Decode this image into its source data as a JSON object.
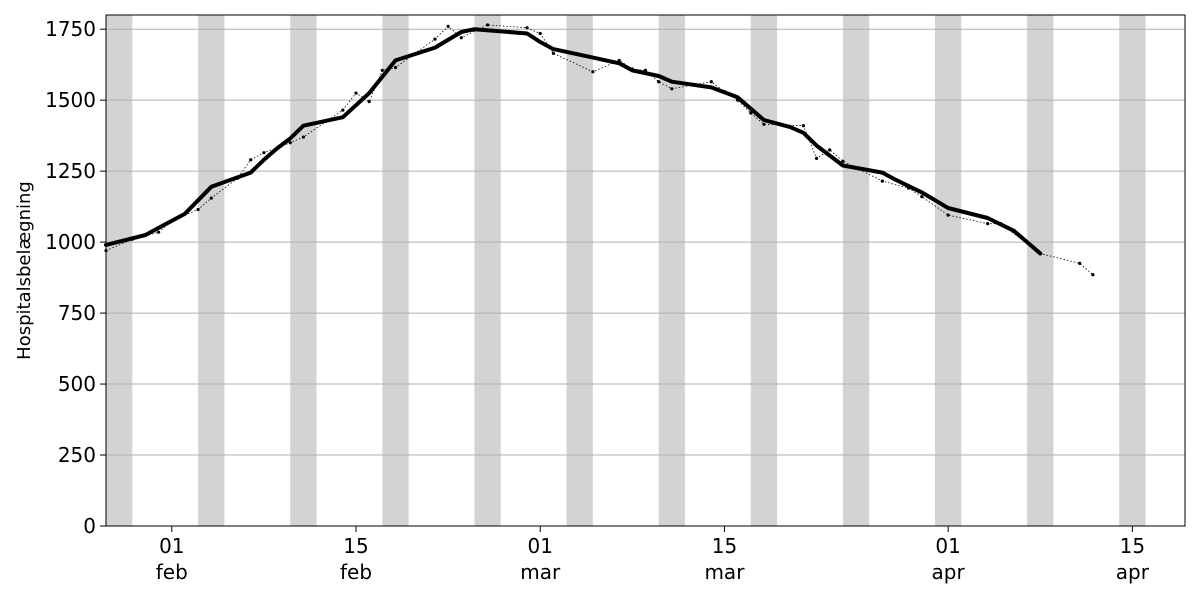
{
  "chart_data": {
    "type": "line",
    "ylabel": "Hospitalsbelægning",
    "xlabel": "",
    "title": "",
    "ylim": [
      0,
      1800
    ],
    "y_ticks": [
      0,
      250,
      500,
      750,
      1000,
      1250,
      1500,
      1750
    ],
    "xlim": [
      "2021-01-27",
      "2021-04-19"
    ],
    "x_ticks": [
      {
        "date": "2021-02-01",
        "day": "01",
        "month": "feb"
      },
      {
        "date": "2021-02-15",
        "day": "15",
        "month": "feb"
      },
      {
        "date": "2021-03-01",
        "day": "01",
        "month": "mar"
      },
      {
        "date": "2021-03-15",
        "day": "15",
        "month": "mar"
      },
      {
        "date": "2021-04-01",
        "day": "01",
        "month": "apr"
      },
      {
        "date": "2021-04-15",
        "day": "15",
        "month": "apr"
      }
    ],
    "grid": "horizontal",
    "weekend_bands": [
      [
        "2021-01-27",
        "2021-01-29"
      ],
      [
        "2021-02-03",
        "2021-02-05"
      ],
      [
        "2021-02-10",
        "2021-02-12"
      ],
      [
        "2021-02-17",
        "2021-02-19"
      ],
      [
        "2021-02-24",
        "2021-02-26"
      ],
      [
        "2021-03-03",
        "2021-03-05"
      ],
      [
        "2021-03-10",
        "2021-03-12"
      ],
      [
        "2021-03-17",
        "2021-03-19"
      ],
      [
        "2021-03-24",
        "2021-03-26"
      ],
      [
        "2021-03-31",
        "2021-04-02"
      ],
      [
        "2021-04-07",
        "2021-04-09"
      ],
      [
        "2021-04-14",
        "2021-04-16"
      ]
    ],
    "series": [
      {
        "style": "dotted-with-markers",
        "color": "#000000",
        "points": [
          [
            "2021-01-27",
            970
          ],
          [
            "2021-01-29",
            1010
          ],
          [
            "2021-01-31",
            1035
          ],
          [
            "2021-02-01",
            1075
          ],
          [
            "2021-02-03",
            1115
          ],
          [
            "2021-02-04",
            1155
          ],
          [
            "2021-02-06",
            1225
          ],
          [
            "2021-02-07",
            1290
          ],
          [
            "2021-02-08",
            1315
          ],
          [
            "2021-02-10",
            1350
          ],
          [
            "2021-02-11",
            1370
          ],
          [
            "2021-02-14",
            1465
          ],
          [
            "2021-02-15",
            1525
          ],
          [
            "2021-02-16",
            1495
          ],
          [
            "2021-02-17",
            1605
          ],
          [
            "2021-02-18",
            1615
          ],
          [
            "2021-02-21",
            1715
          ],
          [
            "2021-02-22",
            1760
          ],
          [
            "2021-02-23",
            1720
          ],
          [
            "2021-02-25",
            1765
          ],
          [
            "2021-02-28",
            1755
          ],
          [
            "2021-03-01",
            1735
          ],
          [
            "2021-03-02",
            1665
          ],
          [
            "2021-03-05",
            1600
          ],
          [
            "2021-03-07",
            1640
          ],
          [
            "2021-03-08",
            1610
          ],
          [
            "2021-03-09",
            1605
          ],
          [
            "2021-03-10",
            1565
          ],
          [
            "2021-03-11",
            1540
          ],
          [
            "2021-03-14",
            1565
          ],
          [
            "2021-03-15",
            1530
          ],
          [
            "2021-03-16",
            1500
          ],
          [
            "2021-03-17",
            1455
          ],
          [
            "2021-03-18",
            1415
          ],
          [
            "2021-03-21",
            1410
          ],
          [
            "2021-03-22",
            1295
          ],
          [
            "2021-03-23",
            1325
          ],
          [
            "2021-03-24",
            1285
          ],
          [
            "2021-03-27",
            1215
          ],
          [
            "2021-03-29",
            1190
          ],
          [
            "2021-03-30",
            1160
          ],
          [
            "2021-04-01",
            1095
          ],
          [
            "2021-04-04",
            1065
          ],
          [
            "2021-04-05",
            1065
          ],
          [
            "2021-04-08",
            960
          ],
          [
            "2021-04-11",
            925
          ],
          [
            "2021-04-12",
            885
          ]
        ]
      },
      {
        "style": "thick-line",
        "color": "#000000",
        "points": [
          [
            "2021-01-27",
            990
          ],
          [
            "2021-01-30",
            1025
          ],
          [
            "2021-01-31",
            1050
          ],
          [
            "2021-02-02",
            1100
          ],
          [
            "2021-02-04",
            1195
          ],
          [
            "2021-02-07",
            1245
          ],
          [
            "2021-02-08",
            1290
          ],
          [
            "2021-02-09",
            1330
          ],
          [
            "2021-02-10",
            1365
          ],
          [
            "2021-02-11",
            1410
          ],
          [
            "2021-02-14",
            1440
          ],
          [
            "2021-02-16",
            1525
          ],
          [
            "2021-02-18",
            1640
          ],
          [
            "2021-02-21",
            1685
          ],
          [
            "2021-02-23",
            1740
          ],
          [
            "2021-02-24",
            1750
          ],
          [
            "2021-02-28",
            1735
          ],
          [
            "2021-03-01",
            1705
          ],
          [
            "2021-03-02",
            1680
          ],
          [
            "2021-03-05",
            1650
          ],
          [
            "2021-03-07",
            1630
          ],
          [
            "2021-03-08",
            1605
          ],
          [
            "2021-03-10",
            1585
          ],
          [
            "2021-03-11",
            1565
          ],
          [
            "2021-03-14",
            1545
          ],
          [
            "2021-03-16",
            1510
          ],
          [
            "2021-03-17",
            1470
          ],
          [
            "2021-03-18",
            1430
          ],
          [
            "2021-03-20",
            1405
          ],
          [
            "2021-03-21",
            1385
          ],
          [
            "2021-03-22",
            1340
          ],
          [
            "2021-03-24",
            1270
          ],
          [
            "2021-03-27",
            1245
          ],
          [
            "2021-03-28",
            1220
          ],
          [
            "2021-03-30",
            1175
          ],
          [
            "2021-04-01",
            1120
          ],
          [
            "2021-04-04",
            1085
          ],
          [
            "2021-04-06",
            1040
          ],
          [
            "2021-04-07",
            1000
          ],
          [
            "2021-04-08",
            960
          ]
        ]
      }
    ]
  }
}
